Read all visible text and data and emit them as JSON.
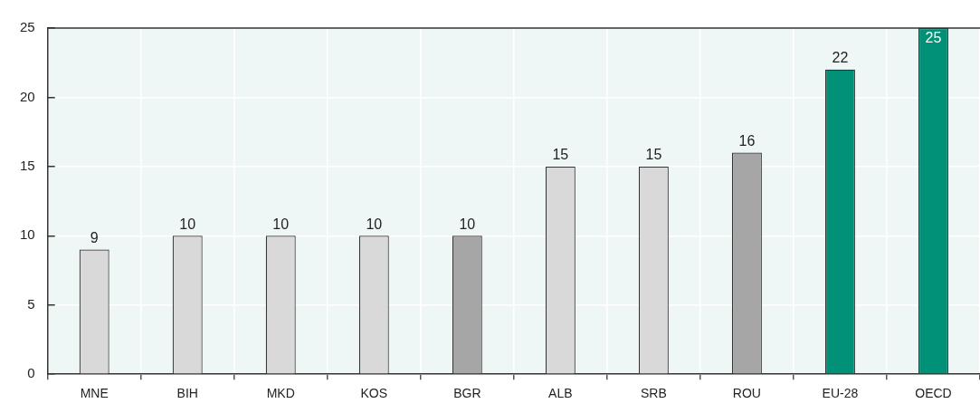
{
  "chart_data": {
    "type": "bar",
    "categories": [
      "MNE",
      "BIH",
      "MKD",
      "KOS",
      "BGR",
      "ALB",
      "SRB",
      "ROU",
      "EU-28",
      "OECD"
    ],
    "values": [
      9,
      10,
      10,
      10,
      10,
      15,
      15,
      16,
      22,
      25
    ],
    "colors": [
      "#d9d9d9",
      "#d9d9d9",
      "#d9d9d9",
      "#d9d9d9",
      "#a6a6a6",
      "#d9d9d9",
      "#d9d9d9",
      "#a6a6a6",
      "#009178",
      "#009178"
    ],
    "ylim": [
      0,
      25
    ],
    "yticks": [
      0,
      5,
      10,
      15,
      20,
      25
    ],
    "grid": true,
    "legend": false,
    "data_labels": true
  }
}
